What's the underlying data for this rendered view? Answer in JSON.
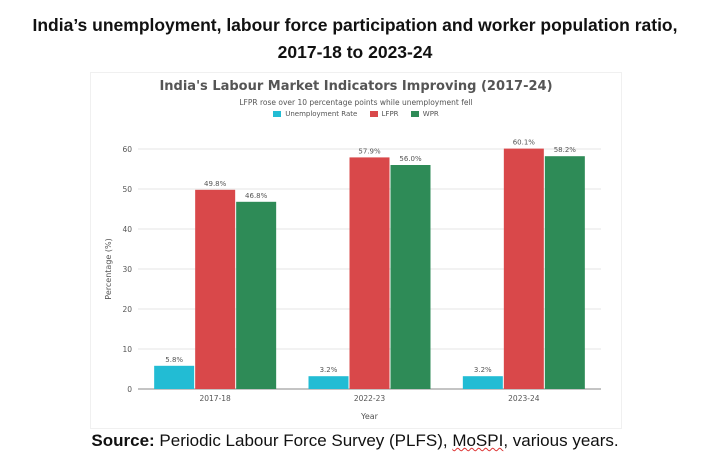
{
  "header": {
    "title_line1": "India’s unemployment, labour force participation and worker population ratio,",
    "title_line2": "2017-18 to 2023-24"
  },
  "source": {
    "label": "Source:",
    "text_before": " Periodic Labour Force Survey (PLFS), ",
    "text_underlined": "MoSPI",
    "text_after": ", various years."
  },
  "colors": {
    "unemployment": "#22bcd4",
    "lfpr": "#d9484a",
    "wpr": "#2e8b57",
    "grid": "#e6e6e6",
    "axis_text": "#555555"
  },
  "chart_data": {
    "type": "bar",
    "title": "India's Labour Market Indicators Improving (2017-24)",
    "subtitle": "LFPR rose over 10 percentage points while unemployment fell",
    "xlabel": "Year",
    "ylabel": "Percentage (%)",
    "ylim": [
      0,
      60
    ],
    "yticks": [
      0,
      10,
      20,
      30,
      40,
      50,
      60
    ],
    "grid": true,
    "legend_position": "top-center",
    "categories": [
      "2017-18",
      "2022-23",
      "2023-24"
    ],
    "series": [
      {
        "name": "Unemployment Rate",
        "color": "#22bcd4",
        "values": [
          5.8,
          3.2,
          3.2
        ],
        "labels": [
          "5.8%",
          "3.2%",
          "3.2%"
        ]
      },
      {
        "name": "LFPR",
        "color": "#d9484a",
        "values": [
          49.8,
          57.9,
          60.1
        ],
        "labels": [
          "49.8%",
          "57.9%",
          "60.1%"
        ]
      },
      {
        "name": "WPR",
        "color": "#2e8b57",
        "values": [
          46.8,
          56.0,
          58.2
        ],
        "labels": [
          "46.8%",
          "56.0%",
          "58.2%"
        ]
      }
    ]
  }
}
